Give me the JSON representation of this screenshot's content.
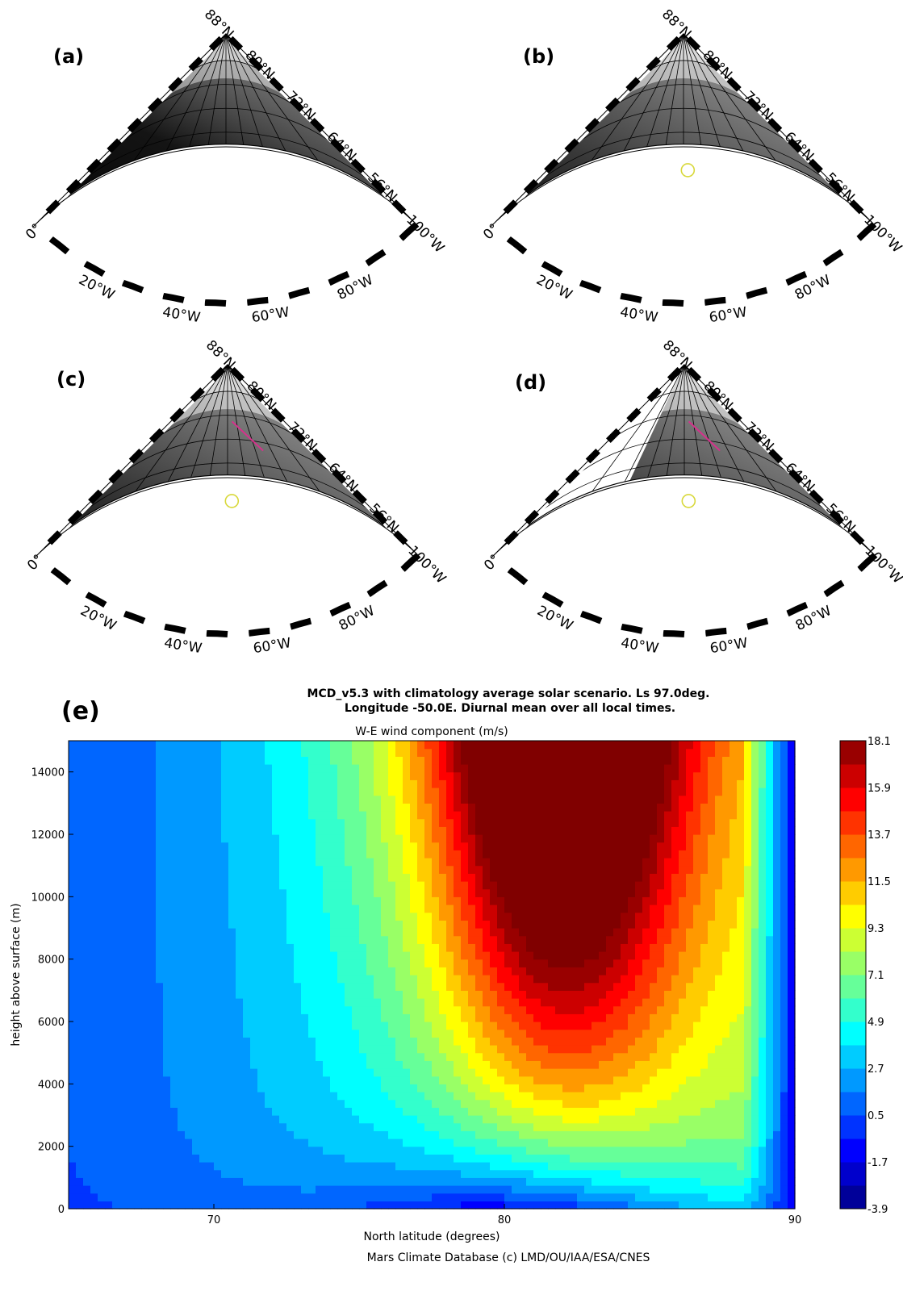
{
  "panels": [
    {
      "label": "(a)",
      "lat_labels": [
        "88°N",
        "80°N",
        "72°N",
        "64°N",
        "56°N"
      ],
      "lon_labels": [
        "100°W",
        "80°W",
        "60°W",
        "40°W",
        "20°W",
        "0°"
      ],
      "markers": {
        "circle": false,
        "line": false
      },
      "no_data_wedge": false
    },
    {
      "label": "(b)",
      "lat_labels": [
        "88°N",
        "80°N",
        "72°N",
        "64°N",
        "56°N"
      ],
      "lon_labels": [
        "100°W",
        "80°W",
        "60°W",
        "40°W",
        "20°W",
        "0°"
      ],
      "markers": {
        "circle": true,
        "line": false
      },
      "no_data_wedge": false
    },
    {
      "label": "(c)",
      "lat_labels": [
        "88°N",
        "80°N",
        "72°N",
        "64°N",
        "56°N"
      ],
      "lon_labels": [
        "100°W",
        "80°W",
        "60°W",
        "40°W",
        "20°W",
        "0°"
      ],
      "markers": {
        "circle": true,
        "line": true
      },
      "no_data_wedge": false
    },
    {
      "label": "(d)",
      "lat_labels": [
        "88°N",
        "80°N",
        "72°N",
        "64°N",
        "56°N"
      ],
      "lon_labels": [
        "100°W",
        "80°W",
        "60°W",
        "40°W",
        "20°W",
        "0°"
      ],
      "markers": {
        "circle": true,
        "line": true
      },
      "no_data_wedge": true
    }
  ],
  "colors": {
    "circle_marker": "#d8d83a",
    "line_marker": "#d6318c"
  },
  "chart_data": {
    "type": "heatmap",
    "panel_label": "(e)",
    "title_line1": "MCD_v5.3 with climatology average solar scenario. Ls 97.0deg.",
    "title_line2": "Longitude -50.0E. Diurnal mean over all local times.",
    "subtitle": "W-E wind component (m/s)",
    "xlabel": "North latitude (degrees)",
    "ylabel": "height above surface (m)",
    "footer": "Mars Climate Database (c) LMD/OU/IAA/ESA/CNES",
    "xlim": [
      65,
      90
    ],
    "ylim": [
      0,
      15000
    ],
    "x_ticks": [
      "70",
      "80",
      "90"
    ],
    "y_ticks": [
      "0",
      "2000",
      "4000",
      "6000",
      "8000",
      "10000",
      "12000",
      "14000"
    ],
    "colorbar_ticks": [
      "18.1",
      "15.9",
      "13.7",
      "11.5",
      "9.3",
      "7.1",
      "4.9",
      "2.7",
      "0.5",
      "-1.7",
      "-3.9"
    ],
    "vmin": -3.9,
    "vmax": 18.1,
    "z_min_bottom": -3.5,
    "z_max_top": 17.8,
    "colormap": "jet"
  }
}
